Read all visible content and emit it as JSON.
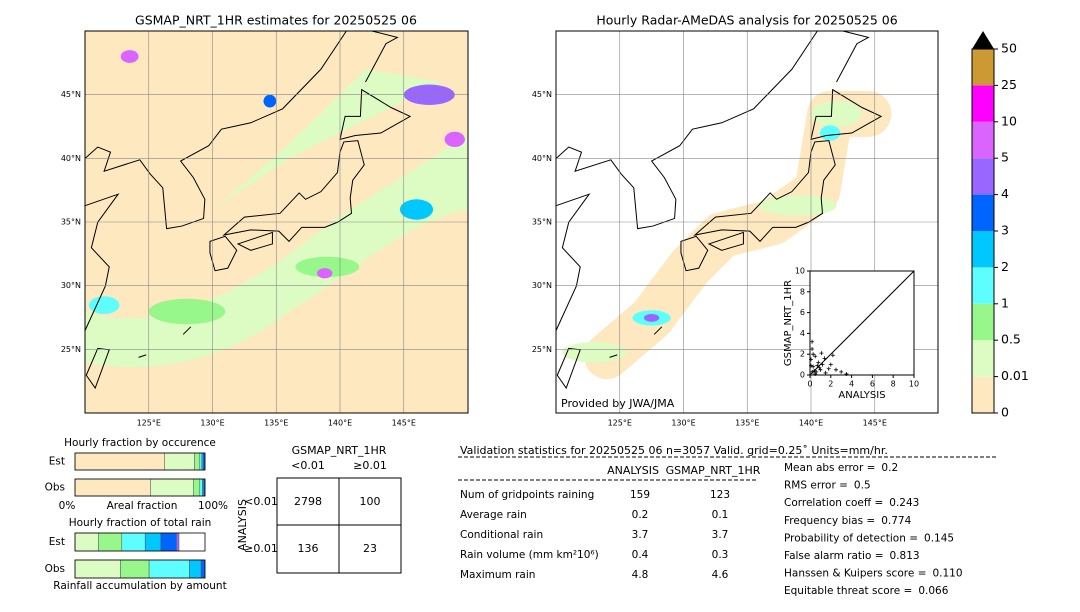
{
  "maps": [
    {
      "title": "GSMAP_NRT_1HR estimates for 20250525 06",
      "xlim": [
        120,
        150
      ],
      "ylim": [
        20,
        50
      ],
      "xticks": [
        {
          "value": 125,
          "label": "125°E"
        },
        {
          "value": 130,
          "label": "130°E"
        },
        {
          "value": 135,
          "label": "135°E"
        },
        {
          "value": 140,
          "label": "140°E"
        },
        {
          "value": 145,
          "label": "145°E"
        }
      ],
      "yticks": [
        {
          "value": 25,
          "label": "25°N"
        },
        {
          "value": 30,
          "label": "30°N"
        },
        {
          "value": 35,
          "label": "35°N"
        },
        {
          "value": 40,
          "label": "40°N"
        },
        {
          "value": 45,
          "label": "45°N"
        }
      ]
    },
    {
      "title": "Hourly Radar-AMeDAS analysis for 20250525 06",
      "credit": "Provided by JWA/JMA",
      "xlim": [
        120,
        150
      ],
      "ylim": [
        20,
        50
      ],
      "xticks": [
        {
          "value": 125,
          "label": "125°E"
        },
        {
          "value": 130,
          "label": "130°E"
        },
        {
          "value": 135,
          "label": "135°E"
        },
        {
          "value": 140,
          "label": "140°E"
        },
        {
          "value": 145,
          "label": "145°E"
        }
      ],
      "yticks": [
        {
          "value": 25,
          "label": "25°N"
        },
        {
          "value": 30,
          "label": "30°N"
        },
        {
          "value": 35,
          "label": "35°N"
        },
        {
          "value": 40,
          "label": "40°N"
        },
        {
          "value": 45,
          "label": "45°N"
        }
      ]
    }
  ],
  "colorbar": {
    "levels": [
      0,
      0.01,
      0.5,
      1,
      2,
      3,
      4,
      5,
      10,
      25,
      50
    ],
    "colors": [
      "#fde8c0",
      "#dcfcc4",
      "#98f78a",
      "#5efefe",
      "#00c8fe",
      "#0064fe",
      "#9966ff",
      "#dc64fe",
      "#fe00fe",
      "#cc9933"
    ]
  },
  "chart_data": [
    {
      "type": "stacked-hbar",
      "title": "Hourly fraction by occurence",
      "categories": [
        "Est",
        "Obs"
      ],
      "xlabel": "Areal fraction",
      "xlim": [
        0,
        1
      ],
      "xticks": [
        {
          "value": 0,
          "label": "0%"
        },
        {
          "value": 1,
          "label": "100%"
        }
      ],
      "series": [
        {
          "color": "#fde8c0",
          "values": [
            0.69,
            0.58
          ]
        },
        {
          "color": "#dcfcc4",
          "values": [
            0.23,
            0.33
          ]
        },
        {
          "color": "#98f78a",
          "values": [
            0.04,
            0.05
          ]
        },
        {
          "color": "#5efefe",
          "values": [
            0.015,
            0.02
          ]
        },
        {
          "color": "#00c8fe",
          "values": [
            0.01,
            0.01
          ]
        },
        {
          "color": "#0064fe",
          "values": [
            0.015,
            0.01
          ]
        }
      ]
    },
    {
      "type": "stacked-hbar",
      "title": "Hourly fraction of total rain",
      "categories": [
        "Est",
        "Obs"
      ],
      "xlabel": "Rainfall accumulation by amount",
      "xlim": [
        0,
        1
      ],
      "series": [
        {
          "color": "#dcfcc4",
          "values": [
            0.18,
            0.35
          ]
        },
        {
          "color": "#98f78a",
          "values": [
            0.18,
            0.22
          ]
        },
        {
          "color": "#5efefe",
          "values": [
            0.18,
            0.31
          ]
        },
        {
          "color": "#00c8fe",
          "values": [
            0.12,
            0.09
          ]
        },
        {
          "color": "#0064fe",
          "values": [
            0.12,
            0.03
          ]
        },
        {
          "color": "#9966ff",
          "values": [
            0.02,
            0.0
          ]
        }
      ]
    },
    {
      "type": "scatter",
      "xlabel": "ANALYSIS",
      "ylabel": "GSMAP_NRT_1HR",
      "xlim": [
        0,
        10
      ],
      "ylim": [
        0,
        10
      ],
      "xticks": [
        0,
        2,
        4,
        6,
        8,
        10
      ],
      "yticks": [
        0,
        2,
        4,
        6,
        8,
        10
      ],
      "x": [
        0.1,
        0.2,
        0.3,
        0.5,
        0.6,
        0.8,
        1.0,
        1.2,
        1.5,
        1.8,
        2.0,
        2.5,
        3.0,
        3.5,
        0.2,
        0.4,
        0.1,
        0.3,
        0.7,
        1.1,
        0.5,
        0.2,
        1.4,
        2.2,
        0.9
      ],
      "y": [
        1.5,
        2.5,
        0.8,
        1.8,
        0.3,
        1.2,
        0.5,
        1.0,
        0.2,
        0.6,
        1.0,
        0.5,
        0.3,
        0.1,
        3.2,
        0.4,
        0.9,
        2.0,
        0.9,
        2.1,
        0.1,
        0.3,
        1.6,
        1.9,
        0.7
      ]
    }
  ],
  "contingency": {
    "title": "GSMAP_NRT_1HR",
    "columns": [
      "<0.01",
      "≥0.01"
    ],
    "row_title": "ANALYSIS",
    "rows": [
      "<0.01",
      "≥0.01"
    ],
    "cells": [
      [
        2798,
        100
      ],
      [
        136,
        23
      ]
    ]
  },
  "validation": {
    "header": "Validation statistics for 20250525 06  n=3057 Valid. grid=0.25˚ Units=mm/hr.",
    "columns": [
      "ANALYSIS",
      "GSMAP_NRT_1HR"
    ],
    "rows": [
      {
        "label": "Num of gridpoints raining",
        "values": [
          159,
          123
        ]
      },
      {
        "label": "Average rain",
        "values": [
          0.2,
          0.1
        ]
      },
      {
        "label": "Conditional rain",
        "values": [
          3.7,
          3.7
        ]
      },
      {
        "label": "Rain volume (mm km²10⁶)",
        "values": [
          0.4,
          0.3
        ]
      },
      {
        "label": "Maximum rain",
        "values": [
          4.8,
          4.6
        ]
      }
    ],
    "scores": [
      {
        "label": "Mean abs error =",
        "value": 0.2
      },
      {
        "label": "RMS error =",
        "value": 0.5
      },
      {
        "label": "Correlation coeff =",
        "value": 0.243
      },
      {
        "label": "Frequency bias =",
        "value": 0.774
      },
      {
        "label": "Probability of detection =",
        "value": 0.145
      },
      {
        "label": "False alarm ratio =",
        "value": 0.813
      },
      {
        "label": "Hanssen & Kuipers score =",
        "value": "0.110"
      },
      {
        "label": "Equitable threat score =",
        "value": 0.066
      }
    ]
  }
}
